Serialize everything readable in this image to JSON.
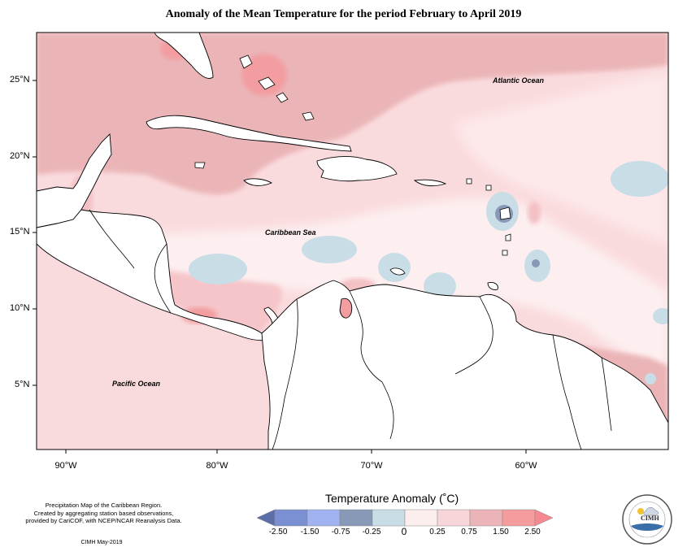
{
  "title": "Anomaly of the Mean Temperature for the period February to April 2019",
  "map": {
    "lat_ticks": [
      "25°N",
      "20°N",
      "15°N",
      "10°N",
      "5°N"
    ],
    "lon_ticks": [
      "90°W",
      "80°W",
      "70°W",
      "60°W"
    ],
    "labels": {
      "atlantic": "Atlantic Ocean",
      "caribbean": "Caribbean Sea",
      "pacific": "Pacific Ocean"
    }
  },
  "legend": {
    "title": "Temperature Anomaly (˚C)",
    "labels": [
      "-2.50",
      "-1.50",
      "-0.75",
      "-0.25",
      "0",
      "0.25",
      "0.75",
      "1.50",
      "2.50"
    ],
    "colors": [
      "#5b6ea8",
      "#7b8fd3",
      "#a0b3f0",
      "#8899b8",
      "#c9dde6",
      "#fdeeee",
      "#f7d6da",
      "#eab4b8",
      "#f49c9e",
      "#f48a90"
    ]
  },
  "credits": {
    "line1": "Precipitation Map of the Caribbean Region.",
    "line2": "Created by aggregating station based observations,",
    "line3": "provided by CariCOF, with NCEP/NCAR Reanalysis Data.",
    "date": "CIMH May-2019",
    "logo_text": "CIMH"
  }
}
